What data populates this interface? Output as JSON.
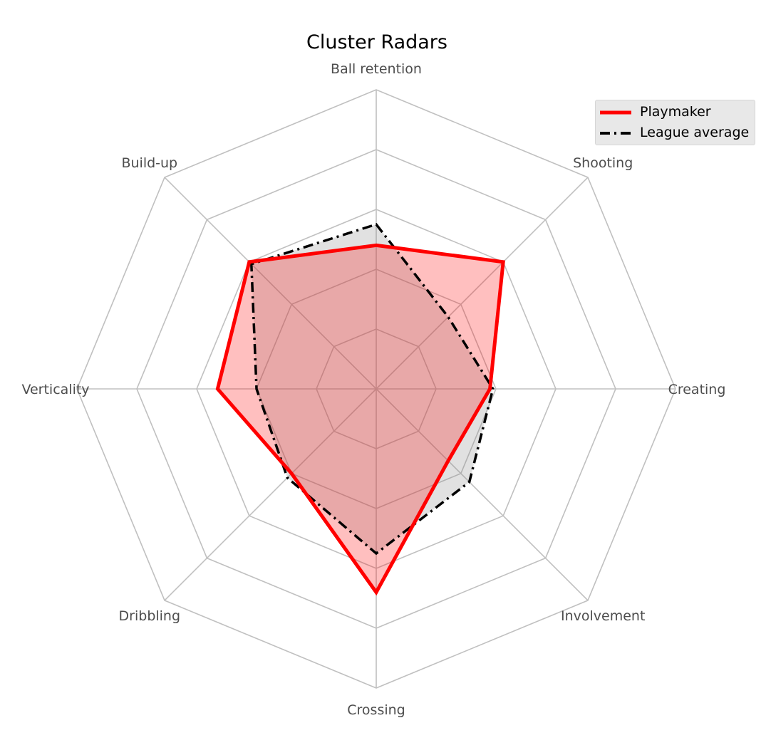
{
  "chart_data": {
    "type": "radar",
    "title": "Cluster Radars",
    "axes": [
      "Ball retention",
      "Shooting",
      "Creating",
      "Involvement",
      "Crossing",
      "Dribbling",
      "Verticality",
      "Build-up"
    ],
    "rlim": [
      0,
      5
    ],
    "rings": 5,
    "grid": true,
    "legend_position": "top-right",
    "series": [
      {
        "name": "Playmaker",
        "values": [
          2.4,
          3.0,
          1.9,
          1.7,
          3.4,
          2.0,
          2.65,
          3.0
        ],
        "color": "#ff0000",
        "fill": "#ff0000",
        "linestyle": "solid"
      },
      {
        "name": "League average",
        "values": [
          2.75,
          1.7,
          1.95,
          2.2,
          2.75,
          2.1,
          2.0,
          2.95
        ],
        "color": "#000000",
        "fill": "#888888",
        "linestyle": "dashdot"
      }
    ],
    "colors": {
      "grid": "#c0c0c0",
      "label": "#4d4d4d"
    }
  }
}
